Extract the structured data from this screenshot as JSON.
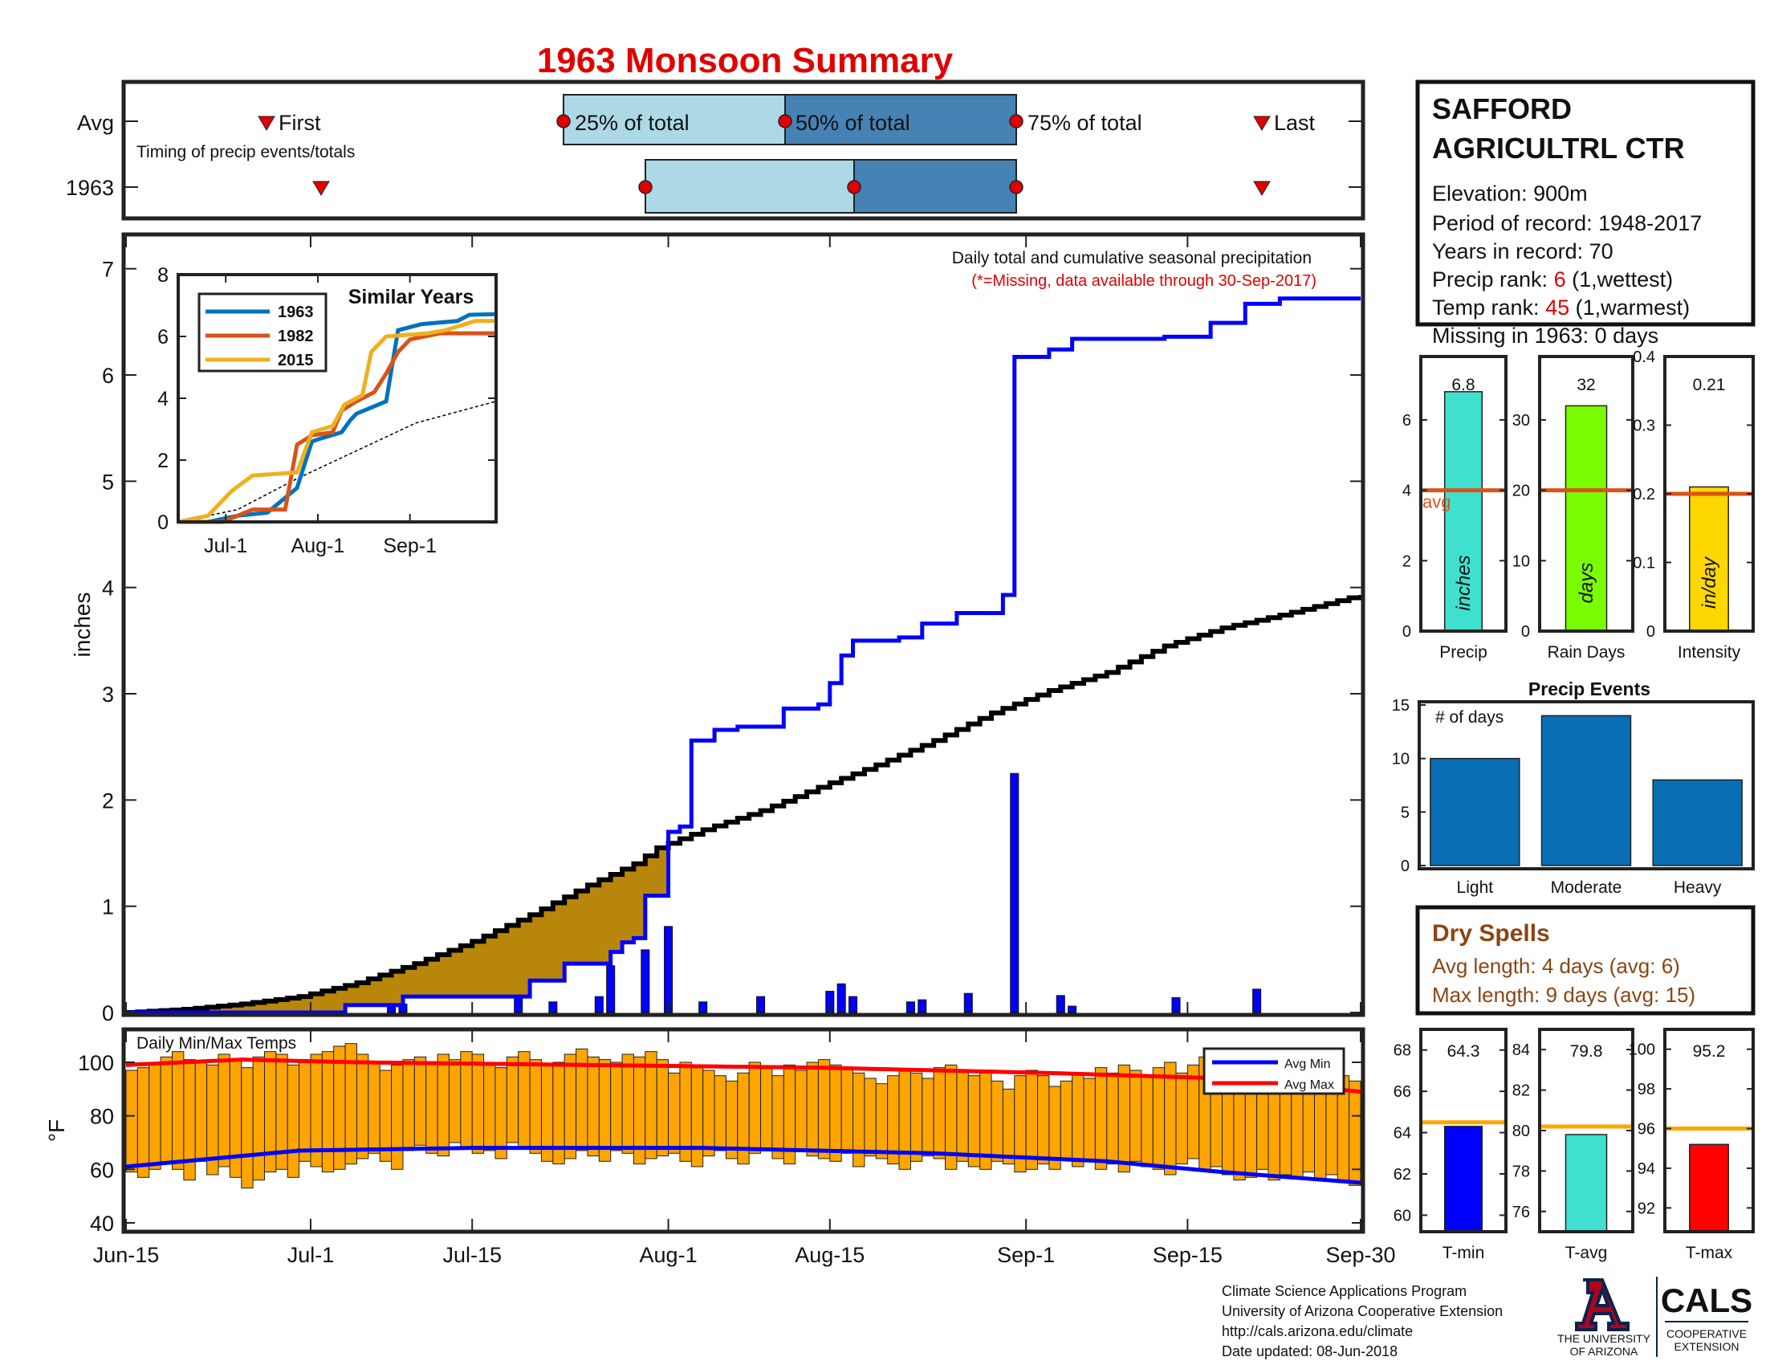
{
  "title": "1963 Monsoon Summary",
  "colors": {
    "green": "#228b22",
    "brown": "#b8860b",
    "gray": "#e8e8e8",
    "blue": "#0000ff",
    "red": "#ff0000",
    "orange": "#ffa500",
    "lightblue": "#add8e6",
    "steelblue": "#4682b4",
    "barblue": "#0a6eb4",
    "redtext": "#e00000"
  },
  "timing": {
    "row_avg": "Avg",
    "row_year": "1963",
    "caption": "Timing of precip events/totals",
    "first_label": "First",
    "last_label": "Last",
    "p25_label": "25% of total",
    "p50_label": "50% of total",
    "p75_label": "75% of total",
    "avg": {
      "first": "Jun 24",
      "p25": "Jul 23",
      "p50": "Aug 6",
      "p75": "Aug 31",
      "last": "Sep 22"
    },
    "year": {
      "first": "Jul 2",
      "p25": "Jul 28",
      "p50": "Aug 17",
      "p75": "Aug 31",
      "last": "Sep 22"
    }
  },
  "station": {
    "name1": "SAFFORD",
    "name2": "AGRICULTRL CTR",
    "elevation": "Elevation: 900m",
    "period": "Period of record: 1948-2017",
    "years": "Years in record: 70",
    "precip_rank_pre": "Precip rank: ",
    "precip_rank_val": "6",
    "precip_rank_post": " (1,wettest)",
    "temp_rank_pre": "Temp rank: ",
    "temp_rank_val": "45",
    "temp_rank_post": " (1,warmest)",
    "missing": "Missing in 1963: 0 days"
  },
  "main_chart": {
    "note1": "Daily total and cumulative seasonal precipitation",
    "note2": "(*=Missing, data available through 30-Sep-2017)",
    "ylabel": "inches",
    "yticks": [
      "0",
      "1",
      "2",
      "3",
      "4",
      "5",
      "6",
      "7"
    ],
    "xticks": [
      "Jun-15",
      "Jul-1",
      "Jul-15",
      "Aug-1",
      "Aug-15",
      "Sep-1",
      "Sep-15",
      "Sep-30"
    ],
    "days": 107,
    "cumulative_1963_breakpoints": [
      [
        0,
        0
      ],
      [
        19,
        0.07
      ],
      [
        24,
        0.15
      ],
      [
        35,
        0.3
      ],
      [
        38,
        0.46
      ],
      [
        42,
        0.57
      ],
      [
        43,
        0.66
      ],
      [
        44,
        0.7
      ],
      [
        45,
        1.1
      ],
      [
        47,
        1.7
      ],
      [
        48,
        1.75
      ],
      [
        49,
        2.56
      ],
      [
        51,
        2.66
      ],
      [
        53,
        2.69
      ],
      [
        57,
        2.86
      ],
      [
        60,
        2.9
      ],
      [
        61,
        3.1
      ],
      [
        62,
        3.36
      ],
      [
        63,
        3.5
      ],
      [
        67,
        3.53
      ],
      [
        69,
        3.66
      ],
      [
        72,
        3.76
      ],
      [
        76,
        3.93
      ],
      [
        77,
        6.17
      ],
      [
        80,
        6.24
      ],
      [
        82,
        6.34
      ],
      [
        90,
        6.36
      ],
      [
        94,
        6.49
      ],
      [
        97,
        6.67
      ],
      [
        100,
        6.72
      ],
      [
        107,
        6.72
      ]
    ],
    "average_cumulative_breakpoints": [
      [
        0,
        0
      ],
      [
        5,
        0.03
      ],
      [
        10,
        0.08
      ],
      [
        15,
        0.15
      ],
      [
        20,
        0.28
      ],
      [
        25,
        0.46
      ],
      [
        30,
        0.67
      ],
      [
        35,
        0.92
      ],
      [
        40,
        1.2
      ],
      [
        44,
        1.4
      ],
      [
        46,
        1.55
      ],
      [
        50,
        1.72
      ],
      [
        55,
        1.9
      ],
      [
        60,
        2.12
      ],
      [
        65,
        2.33
      ],
      [
        70,
        2.56
      ],
      [
        75,
        2.82
      ],
      [
        80,
        3.03
      ],
      [
        85,
        3.2
      ],
      [
        90,
        3.45
      ],
      [
        95,
        3.62
      ],
      [
        100,
        3.74
      ],
      [
        107,
        3.93
      ]
    ],
    "daily_bars": [
      [
        23,
        0.07
      ],
      [
        24,
        0.08
      ],
      [
        34,
        0.14
      ],
      [
        37,
        0.1
      ],
      [
        41,
        0.15
      ],
      [
        42,
        0.44
      ],
      [
        45,
        0.59
      ],
      [
        47,
        0.81
      ],
      [
        50,
        0.1
      ],
      [
        55,
        0.15
      ],
      [
        61,
        0.2
      ],
      [
        62,
        0.27
      ],
      [
        63,
        0.15
      ],
      [
        68,
        0.1
      ],
      [
        69,
        0.12
      ],
      [
        73,
        0.18
      ],
      [
        77,
        2.25
      ],
      [
        81,
        0.16
      ],
      [
        82,
        0.06
      ],
      [
        91,
        0.14
      ],
      [
        98,
        0.22
      ]
    ]
  },
  "inset": {
    "title": "Similar Years",
    "yticks": [
      "0",
      "2",
      "4",
      "6",
      "8"
    ],
    "xticks": [
      "Jul-1",
      "Aug-1",
      "Sep-1"
    ],
    "series": [
      {
        "name": "1963",
        "color": "#0072bd",
        "points": [
          [
            0,
            0
          ],
          [
            10,
            0
          ],
          [
            20,
            0.2
          ],
          [
            30,
            0.3
          ],
          [
            40,
            1.1
          ],
          [
            45,
            2.6
          ],
          [
            48,
            2.7
          ],
          [
            55,
            2.9
          ],
          [
            58,
            3.3
          ],
          [
            60,
            3.5
          ],
          [
            65,
            3.7
          ],
          [
            70,
            3.9
          ],
          [
            74,
            6.2
          ],
          [
            82,
            6.4
          ],
          [
            94,
            6.5
          ],
          [
            98,
            6.7
          ],
          [
            107,
            6.72
          ]
        ]
      },
      {
        "name": "1982",
        "color": "#d95319",
        "points": [
          [
            0,
            0
          ],
          [
            15,
            0
          ],
          [
            25,
            0.4
          ],
          [
            36,
            0.4
          ],
          [
            40,
            2.5
          ],
          [
            45,
            2.8
          ],
          [
            52,
            2.9
          ],
          [
            55,
            3.6
          ],
          [
            60,
            3.9
          ],
          [
            66,
            4.2
          ],
          [
            70,
            4.8
          ],
          [
            74,
            5.5
          ],
          [
            78,
            5.9
          ],
          [
            88,
            6.1
          ],
          [
            107,
            6.1
          ]
        ]
      },
      {
        "name": "2015",
        "color": "#edb120",
        "points": [
          [
            0,
            0
          ],
          [
            10,
            0.2
          ],
          [
            18,
            1.0
          ],
          [
            25,
            1.5
          ],
          [
            40,
            1.6
          ],
          [
            45,
            2.9
          ],
          [
            52,
            3.1
          ],
          [
            56,
            3.8
          ],
          [
            62,
            4.1
          ],
          [
            65,
            5.5
          ],
          [
            70,
            6.0
          ],
          [
            84,
            6.1
          ],
          [
            90,
            6.2
          ],
          [
            100,
            6.5
          ],
          [
            107,
            6.5
          ]
        ]
      }
    ],
    "avg_points": [
      [
        0,
        0
      ],
      [
        20,
        0.4
      ],
      [
        40,
        1.4
      ],
      [
        60,
        2.3
      ],
      [
        80,
        3.2
      ],
      [
        107,
        3.9
      ]
    ]
  },
  "temp_chart": {
    "label": "Daily Min/Max Temps",
    "ylabel": "°F",
    "yticks": [
      "40",
      "60",
      "80",
      "100"
    ],
    "legend_min": "Avg Min",
    "legend_max": "Avg Max",
    "avg_max_breakpoints": [
      [
        0,
        99
      ],
      [
        10,
        101
      ],
      [
        20,
        100
      ],
      [
        40,
        99
      ],
      [
        60,
        98
      ],
      [
        80,
        96
      ],
      [
        95,
        94
      ],
      [
        107,
        89
      ]
    ],
    "avg_min_breakpoints": [
      [
        0,
        61
      ],
      [
        15,
        67
      ],
      [
        30,
        68
      ],
      [
        50,
        68
      ],
      [
        70,
        66
      ],
      [
        85,
        63
      ],
      [
        95,
        59
      ],
      [
        107,
        55
      ]
    ],
    "daily_max": [
      97,
      98,
      100,
      102,
      104,
      101,
      100,
      99,
      103,
      101,
      98,
      102,
      104,
      103,
      99,
      100,
      103,
      104,
      106,
      107,
      103,
      100,
      97,
      99,
      101,
      102,
      100,
      103,
      101,
      104,
      103,
      100,
      98,
      102,
      104,
      101,
      99,
      100,
      103,
      105,
      102,
      101,
      100,
      103,
      102,
      104,
      101,
      96,
      100,
      99,
      97,
      95,
      93,
      96,
      100,
      98,
      95,
      99,
      97,
      100,
      101,
      99,
      98,
      96,
      94,
      92,
      95,
      97,
      96,
      94,
      98,
      99,
      97,
      95,
      96,
      93,
      90,
      95,
      97,
      95,
      91,
      93,
      96,
      94,
      98,
      96,
      99,
      97,
      95,
      98,
      100,
      96,
      99,
      102,
      98,
      96,
      93,
      92,
      90,
      92,
      97,
      95,
      91,
      92,
      94,
      95,
      93
    ],
    "daily_min": [
      59,
      57,
      60,
      62,
      60,
      56,
      63,
      58,
      61,
      57,
      53,
      56,
      59,
      60,
      57,
      63,
      61,
      59,
      60,
      62,
      64,
      66,
      63,
      60,
      67,
      69,
      66,
      65,
      70,
      68,
      66,
      67,
      64,
      70,
      68,
      66,
      63,
      62,
      64,
      67,
      65,
      63,
      67,
      66,
      62,
      64,
      65,
      66,
      63,
      61,
      65,
      67,
      64,
      62,
      66,
      68,
      64,
      62,
      67,
      65,
      64,
      63,
      66,
      61,
      65,
      64,
      62,
      60,
      63,
      65,
      64,
      60,
      63,
      61,
      60,
      63,
      62,
      59,
      60,
      62,
      60,
      64,
      61,
      63,
      60,
      62,
      59,
      63,
      61,
      60,
      58,
      62,
      64,
      60,
      61,
      58,
      56,
      57,
      60,
      56,
      58,
      57,
      59,
      56,
      58,
      55,
      54
    ]
  },
  "precip_panel": {
    "val": "6.8",
    "avg_label": "avg",
    "bar_text": "inches",
    "xlabel": "Precip",
    "yticks": [
      "0",
      "2",
      "4",
      "6"
    ],
    "value": 6.8,
    "avg": 4.0,
    "ymax": 7.8
  },
  "raindays_panel": {
    "val": "32",
    "bar_text": "days",
    "xlabel": "Rain Days",
    "yticks": [
      "0",
      "10",
      "20",
      "30"
    ],
    "value": 32,
    "avg": 20,
    "ymax": 39
  },
  "intensity_panel": {
    "val": "0.21",
    "bar_text": "in/day",
    "xlabel": "Intensity",
    "yticks": [
      "0",
      "0.1",
      "0.2",
      "0.3",
      "0.4"
    ],
    "value": 0.21,
    "avg": 0.2,
    "ymax": 0.4
  },
  "precip_events": {
    "title": "Precip Events",
    "label": "# of days",
    "yticks": [
      "0",
      "5",
      "10",
      "15"
    ],
    "categories": [
      "Light",
      "Moderate",
      "Heavy"
    ],
    "values": [
      10,
      14,
      8
    ]
  },
  "dry_spells": {
    "title": "Dry Spells",
    "avg": "Avg length: 4 days (avg: 6)",
    "max": "Max length: 9 days (avg: 15)"
  },
  "tmin_panel": {
    "val": "64.3",
    "xlabel": "T-min",
    "yticks": [
      "60",
      "62",
      "64",
      "66",
      "68"
    ],
    "value": 64.3,
    "avg": 64.5,
    "ymin": 59.2,
    "ymax": 69
  },
  "tavg_panel": {
    "val": "79.8",
    "xlabel": "T-avg",
    "yticks": [
      "76",
      "78",
      "80",
      "82",
      "84"
    ],
    "value": 79.8,
    "avg": 80.2,
    "ymin": 75.0,
    "ymax": 85
  },
  "tmax_panel": {
    "val": "95.2",
    "xlabel": "T-max",
    "yticks": [
      "92",
      "94",
      "96",
      "98",
      "100"
    ],
    "value": 95.2,
    "avg": 96.0,
    "ymin": 90.8,
    "ymax": 101
  },
  "footer": {
    "line1": "Climate Science Applications Program",
    "line2": "University of Arizona Cooperative Extension",
    "line3": "http://cals.arizona.edu/climate",
    "line4": " Date updated: 08-Jun-2018",
    "ua1": "THE UNIVERSITY",
    "ua2": "OF ARIZONA",
    "cals": "CALS",
    "coop1": "COOPERATIVE",
    "coop2": "EXTENSION"
  }
}
